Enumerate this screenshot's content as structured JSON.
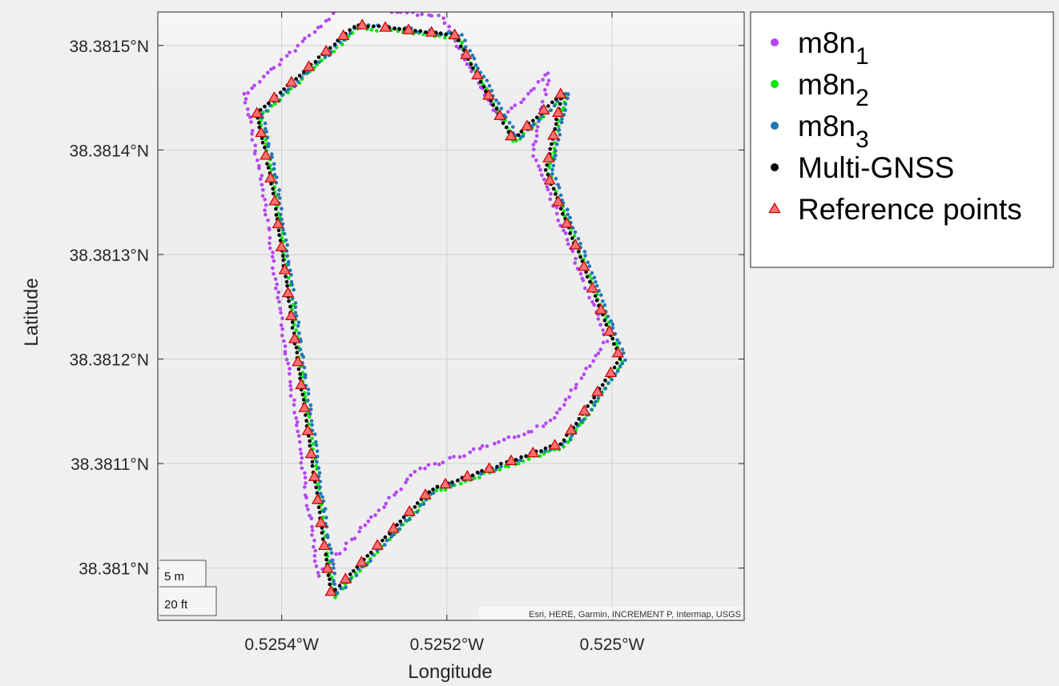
{
  "chart_data": {
    "type": "scatter",
    "xlabel": "Longitude",
    "ylabel": "Latitude",
    "xlim": [
      -0.52555,
      -0.52484
    ],
    "ylim": [
      38.38095,
      38.381532
    ],
    "xticks": [
      {
        "value": -0.5254,
        "label": "0.5254°W"
      },
      {
        "value": -0.5252,
        "label": "0.5252°W"
      },
      {
        "value": -0.525,
        "label": "0.525°W"
      }
    ],
    "yticks": [
      {
        "value": 38.3815,
        "label": "38.3815°N"
      },
      {
        "value": 38.3814,
        "label": "38.3814°N"
      },
      {
        "value": 38.3813,
        "label": "38.3813°N"
      },
      {
        "value": 38.3812,
        "label": "38.3812°N"
      },
      {
        "value": 38.3811,
        "label": "38.3811°N"
      },
      {
        "value": 38.381,
        "label": "38.381°N"
      }
    ],
    "grid": true,
    "legend_position": "outside-top-right",
    "basemap_attribution": "Esri, HERE, Garmin, INCREMENT P, Intermap, USGS",
    "scalebar": {
      "metric": "5 m",
      "imperial": "20 ft"
    },
    "reference_route": [
      [
        -0.52543,
        38.381435
      ],
      [
        -0.52531,
        38.38152
      ],
      [
        -0.52519,
        38.38151
      ],
      [
        -0.52512,
        38.38141
      ],
      [
        -0.52506,
        38.381455
      ],
      [
        -0.52508,
        38.38138
      ],
      [
        -0.52499,
        38.3812
      ],
      [
        -0.52506,
        38.38112
      ],
      [
        -0.52522,
        38.381075
      ],
      [
        -0.52534,
        38.380975
      ],
      [
        -0.52541,
        38.38136
      ],
      [
        -0.52543,
        38.381435
      ]
    ],
    "series": [
      {
        "name": "m8n_1",
        "color": "#b447f0",
        "marker": "dot",
        "offset_lon": -1.6e-05,
        "offset_lat": 1.8e-05,
        "noise": 1.8e-06
      },
      {
        "name": "m8n_2",
        "color": "#00e600",
        "marker": "dot",
        "offset_lon": 3.5e-06,
        "offset_lat": -3e-06,
        "noise": 1.4e-06
      },
      {
        "name": "m8n_3",
        "color": "#1f77b4",
        "marker": "dot",
        "offset_lon": 6.5e-06,
        "offset_lat": 0.0,
        "noise": 1.6e-06
      },
      {
        "name": "Multi-GNSS",
        "color": "#000000",
        "marker": "dot",
        "offset_lon": 0.0,
        "offset_lat": 0.0,
        "noise": 7e-07
      },
      {
        "name": "Reference points",
        "color": "#ff7070",
        "marker": "triangle",
        "edge": "#c00000",
        "spacing_m": 5
      }
    ]
  },
  "legend": {
    "items": [
      {
        "base": "m8n",
        "sub": "1",
        "color": "#b447f0",
        "marker": "dot"
      },
      {
        "base": "m8n",
        "sub": "2",
        "color": "#00e600",
        "marker": "dot"
      },
      {
        "base": "m8n",
        "sub": "3",
        "color": "#1f77b4",
        "marker": "dot"
      },
      {
        "base": "Multi-GNSS",
        "sub": "",
        "color": "#000000",
        "marker": "dot"
      },
      {
        "base": "Reference points",
        "sub": "",
        "color": "#ff7070",
        "marker": "triangle"
      }
    ]
  }
}
